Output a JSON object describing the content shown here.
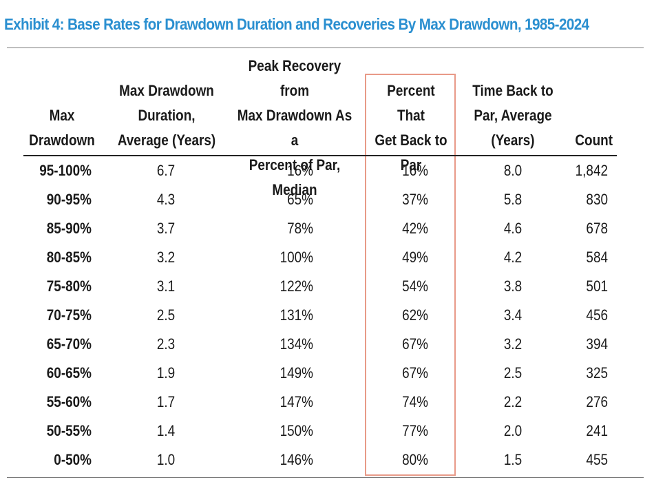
{
  "title": "Exhibit 4: Base Rates for Drawdown Duration and Recoveries By Max Drawdown, 1985-2024",
  "chart_data": {
    "type": "table",
    "columns": [
      "Max Drawdown",
      "Max Drawdown Duration, Average (Years)",
      "Peak Recovery from Max Drawdown As a Percent of Par, Median",
      "Percent That Get Back to Par",
      "Time Back to Par, Average (Years)",
      "Count"
    ],
    "header_lines": [
      [
        "Max",
        "Drawdown"
      ],
      [
        "Max Drawdown",
        "Duration,",
        "Average (Years)"
      ],
      [
        "Peak Recovery from",
        "Max Drawdown As a",
        "Percent of Par,",
        "Median"
      ],
      [
        "Percent That",
        "Get Back to",
        "Par"
      ],
      [
        "Time Back to",
        "Par, Average",
        "(Years)"
      ],
      [
        "Count"
      ]
    ],
    "rows": [
      [
        "95-100%",
        "6.7",
        "16%",
        "16%",
        "8.0",
        "1,842"
      ],
      [
        "90-95%",
        "4.3",
        "65%",
        "37%",
        "5.8",
        "830"
      ],
      [
        "85-90%",
        "3.7",
        "78%",
        "42%",
        "4.6",
        "678"
      ],
      [
        "80-85%",
        "3.2",
        "100%",
        "49%",
        "4.2",
        "584"
      ],
      [
        "75-80%",
        "3.1",
        "122%",
        "54%",
        "3.8",
        "501"
      ],
      [
        "70-75%",
        "2.5",
        "131%",
        "62%",
        "3.4",
        "456"
      ],
      [
        "65-70%",
        "2.3",
        "134%",
        "67%",
        "3.2",
        "394"
      ],
      [
        "60-65%",
        "1.9",
        "149%",
        "67%",
        "2.5",
        "325"
      ],
      [
        "55-60%",
        "1.7",
        "147%",
        "74%",
        "2.2",
        "276"
      ],
      [
        "50-55%",
        "1.4",
        "150%",
        "77%",
        "2.0",
        "241"
      ],
      [
        "0-50%",
        "1.0",
        "146%",
        "80%",
        "1.5",
        "455"
      ]
    ],
    "highlighted_column": 3,
    "highlight_color": "#e89a88",
    "title_color": "#2a8fd0"
  }
}
